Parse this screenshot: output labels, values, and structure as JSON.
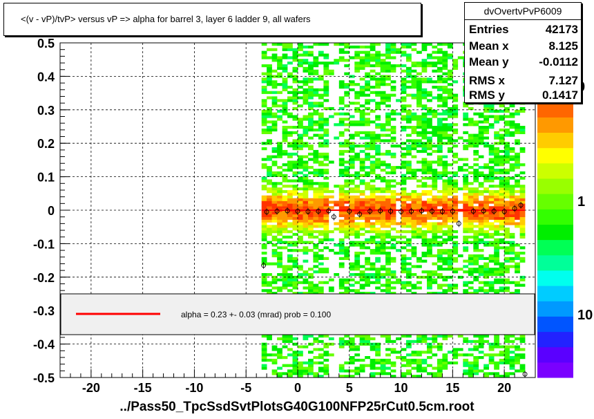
{
  "title": "<(v - vP)/tvP> versus   vP => alpha for barrel 3, layer 6 ladder 9, all wafers",
  "stats": {
    "name": "dvOvertvPvP6009",
    "rows": [
      {
        "key": "Entries",
        "value": "42173"
      },
      {
        "key": "Mean x",
        "value": "8.125"
      },
      {
        "key": "Mean y",
        "value": "-0.0112"
      },
      {
        "key": "RMS x",
        "value": "7.127"
      },
      {
        "key": "RMS y",
        "value": "0.1417"
      }
    ]
  },
  "legend": {
    "text": "alpha =    0.23 +-  0.03 (mrad) prob = 0.100",
    "line_color": "#ff0000"
  },
  "footer": "../Pass50_TpcSsdSvtPlotsG40G100NFP25rCut0.5cm.root",
  "chart_data": {
    "type": "heatmap",
    "xlim": [
      -23,
      23
    ],
    "ylim": [
      -0.5,
      0.5
    ],
    "x_ticks": [
      "-20",
      "-15",
      "-10",
      "-5",
      "0",
      "5",
      "10",
      "15",
      "20"
    ],
    "y_ticks": [
      "0.5",
      "0.4",
      "0.3",
      "0.2",
      "0.1",
      "0",
      "-0.1",
      "-0.2",
      "-0.3",
      "-0.4",
      "-0.5"
    ],
    "grid": true,
    "colorbar_labels": [
      "0",
      "1",
      "10"
    ],
    "filled_x_range": [
      -3.5,
      22
    ],
    "empty_column_gaps": [
      [
        3.0,
        4.0
      ],
      [
        9.5,
        10.2
      ],
      [
        15.6,
        16.0
      ]
    ],
    "fit_line": {
      "x": [
        -3.5,
        22
      ],
      "y": [
        0.0,
        0.0
      ],
      "color": "#ff0000"
    },
    "profile_points": [
      {
        "x": -3.3,
        "y": -0.165
      },
      {
        "x": -3.0,
        "y": -0.005
      },
      {
        "x": -2.0,
        "y": -0.003
      },
      {
        "x": -1.0,
        "y": -0.002
      },
      {
        "x": 0.0,
        "y": -0.003
      },
      {
        "x": 1.0,
        "y": -0.004
      },
      {
        "x": 2.0,
        "y": -0.003
      },
      {
        "x": 3.0,
        "y": -0.002
      },
      {
        "x": 3.5,
        "y": -0.02
      },
      {
        "x": 5.0,
        "y": -0.003
      },
      {
        "x": 6.0,
        "y": -0.012
      },
      {
        "x": 7.0,
        "y": -0.003
      },
      {
        "x": 8.0,
        "y": -0.002
      },
      {
        "x": 9.0,
        "y": -0.003
      },
      {
        "x": 10.0,
        "y": -0.004
      },
      {
        "x": 11.0,
        "y": -0.003
      },
      {
        "x": 12.0,
        "y": -0.002
      },
      {
        "x": 13.0,
        "y": -0.003
      },
      {
        "x": 14.0,
        "y": -0.004
      },
      {
        "x": 15.0,
        "y": -0.003
      },
      {
        "x": 15.6,
        "y": -0.04
      },
      {
        "x": 17.0,
        "y": -0.003
      },
      {
        "x": 18.0,
        "y": -0.002
      },
      {
        "x": 19.0,
        "y": -0.003
      },
      {
        "x": 20.0,
        "y": -0.004
      },
      {
        "x": 21.0,
        "y": 0.005
      },
      {
        "x": 21.6,
        "y": 0.015
      },
      {
        "x": 22.0,
        "y": -0.49
      }
    ]
  }
}
